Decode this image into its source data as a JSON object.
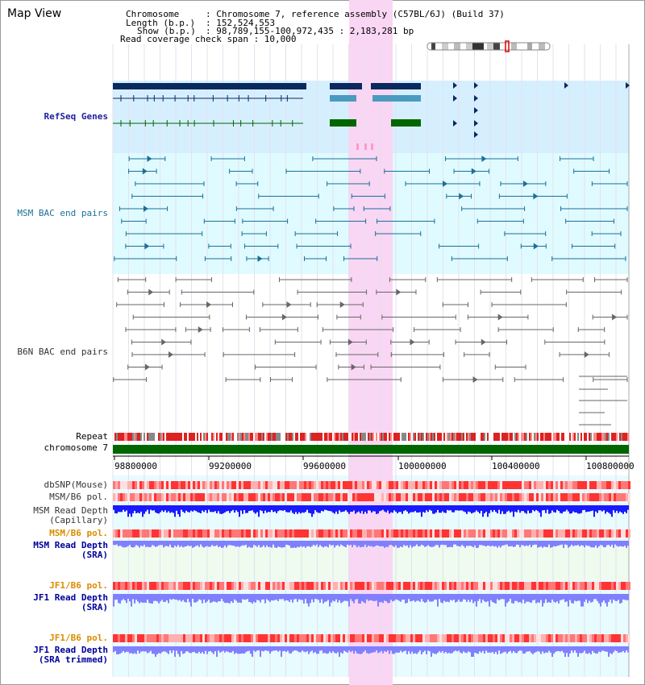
{
  "window": {
    "title": "Map View"
  },
  "header": {
    "chromosome_key": "Chromosome",
    "chromosome_val": ": Chromosome 7, reference assembly (C57BL/6J) (Build 37)",
    "length_key": "Length (b.p.)",
    "length_val": ": 152,524,553",
    "show_key": "Show (b.p.)",
    "show_val": ": 98,789,155-100,972,435 : 2,183,281 bp",
    "coverage": "Read coverage check span : 10,000"
  },
  "tracks": {
    "refseq": "RefSeq Genes",
    "msm_bac": "MSM BAC end pairs",
    "b6n_bac": "B6N BAC end pairs",
    "repeat": "Repeat",
    "chromosome": "chromosome 7",
    "dbsnp": "dbSNP(Mouse)",
    "msm_pol1": "MSM/B6 pol.",
    "msm_depth_cap_1": "MSM Read Depth",
    "msm_depth_cap_2": "(Capillary)",
    "msm_pol2": "MSM/B6 pol.",
    "msm_depth_sra_1": "MSM Read Depth",
    "msm_depth_sra_2": "(SRA)",
    "jf1_pol1": "JF1/B6 pol.",
    "jf1_depth_sra_1": "JF1 Read Depth",
    "jf1_depth_sra_2": "(SRA)",
    "jf1_pol2": "JF1/B6 pol.",
    "jf1_depth_trim_1": "JF1 Read Depth",
    "jf1_depth_trim_2": "(SRA trimmed)"
  },
  "axis": {
    "ticks": [
      "98800000",
      "99200000",
      "99600000",
      "100000000",
      "100400000",
      "100800000"
    ]
  },
  "colors": {
    "highlight": "#f9d6f3",
    "refseq_bg": "#d6efff",
    "msm_bg": "#e0fbff",
    "lane_bg": "#e8fbff",
    "navy_gene": "#0a2a5e",
    "light_gene": "#4a9bc0",
    "green_gene": "#006600",
    "msm_line": "#1a6f9a",
    "b6n_line": "#666666",
    "chromosome_bar": "#006600",
    "pol_red": "#ff4444",
    "depth_blue": "#1a1aff",
    "depth_light": "#8080ff"
  }
}
